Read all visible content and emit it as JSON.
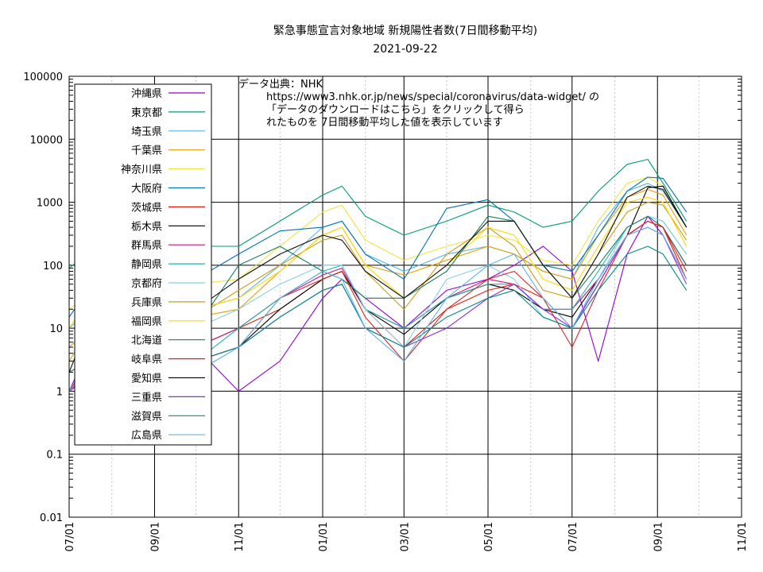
{
  "chart_data": {
    "type": "line",
    "title": "緊急事態宣言対象地域 新規陽性者数(7日間移動平均)",
    "subtitle": "2021-09-22",
    "note_lines": [
      "データ出典：NHK",
      "https://www3.nhk.or.jp/news/special/coronavirus/data-widget/ の",
      "「データのダウンロードはこちら」をクリックして得ら",
      "れたものを 7日間移動平均した値を表示しています"
    ],
    "y_scale": "log",
    "ylim": [
      0.01,
      100000
    ],
    "y_ticks": [
      {
        "value": 100000,
        "label": "100000"
      },
      {
        "value": 10000,
        "label": "10000"
      },
      {
        "value": 1000,
        "label": "1000"
      },
      {
        "value": 100,
        "label": "100"
      },
      {
        "value": 10,
        "label": "10"
      },
      {
        "value": 1,
        "label": "1"
      },
      {
        "value": 0.1,
        "label": "0.1"
      },
      {
        "value": 0.01,
        "label": "0.01"
      }
    ],
    "xlim": [
      "2020-07-01",
      "2021-11-01"
    ],
    "x_ticks": [
      {
        "date": "2020-07-01",
        "label": "07/01"
      },
      {
        "date": "2020-09-01",
        "label": "09/01"
      },
      {
        "date": "2020-11-01",
        "label": "11/01"
      },
      {
        "date": "2021-01-01",
        "label": "01/01"
      },
      {
        "date": "2021-03-01",
        "label": "03/01"
      },
      {
        "date": "2021-05-01",
        "label": "05/01"
      },
      {
        "date": "2021-07-01",
        "label": "07/01"
      },
      {
        "date": "2021-09-01",
        "label": "09/01"
      },
      {
        "date": "2021-11-01",
        "label": "11/01"
      }
    ],
    "grid": true,
    "legend_position": "top-left",
    "dates": [
      "2020-07-01",
      "2020-08-01",
      "2020-09-01",
      "2020-10-01",
      "2020-11-01",
      "2020-12-01",
      "2021-01-01",
      "2021-01-15",
      "2021-02-01",
      "2021-03-01",
      "2021-04-01",
      "2021-05-01",
      "2021-05-20",
      "2021-06-10",
      "2021-07-01",
      "2021-07-20",
      "2021-08-10",
      "2021-08-25",
      "2021-09-05",
      "2021-09-22"
    ],
    "series": [
      {
        "name": "沖縄県",
        "color": "#9400d3",
        "values": [
          1,
          30,
          8,
          5,
          1,
          3,
          30,
          60,
          30,
          10,
          40,
          60,
          100,
          200,
          80,
          3,
          150,
          600,
          300,
          60
        ]
      },
      {
        "name": "東京都",
        "color": "#009e73",
        "values": [
          90,
          300,
          200,
          200,
          200,
          500,
          1300,
          1800,
          600,
          300,
          500,
          900,
          700,
          400,
          500,
          1500,
          4000,
          4800,
          2000,
          500
        ]
      },
      {
        "name": "埼玉県",
        "color": "#56b4e9",
        "values": [
          10,
          40,
          30,
          20,
          30,
          100,
          400,
          500,
          150,
          80,
          150,
          200,
          150,
          80,
          60,
          400,
          1500,
          2000,
          1500,
          400
        ]
      },
      {
        "name": "千葉県",
        "color": "#e69f00",
        "values": [
          5,
          20,
          20,
          15,
          20,
          80,
          300,
          400,
          100,
          70,
          120,
          200,
          150,
          80,
          60,
          300,
          1200,
          1600,
          1300,
          300
        ]
      },
      {
        "name": "神奈川県",
        "color": "#f0e442",
        "values": [
          20,
          60,
          60,
          50,
          60,
          200,
          700,
          900,
          250,
          120,
          200,
          300,
          250,
          120,
          100,
          500,
          2000,
          2500,
          1800,
          400
        ]
      },
      {
        "name": "大阪府",
        "color": "#0072b2",
        "values": [
          15,
          150,
          80,
          60,
          150,
          350,
          400,
          500,
          150,
          60,
          800,
          1100,
          500,
          100,
          80,
          300,
          1500,
          2500,
          2400,
          700
        ]
      },
      {
        "name": "茨城県",
        "color": "#e51e10",
        "values": [
          1,
          5,
          5,
          5,
          10,
          20,
          60,
          80,
          20,
          5,
          20,
          40,
          50,
          30,
          10,
          50,
          300,
          500,
          400,
          60
        ]
      },
      {
        "name": "栃木県",
        "color": "#000000",
        "values": [
          1,
          3,
          2,
          3,
          5,
          20,
          60,
          80,
          20,
          8,
          30,
          50,
          40,
          20,
          15,
          60,
          300,
          1700,
          1800,
          400
        ]
      },
      {
        "name": "群馬県",
        "color": "#c71585",
        "values": [
          1,
          3,
          3,
          5,
          10,
          30,
          70,
          90,
          20,
          10,
          30,
          60,
          50,
          20,
          20,
          60,
          300,
          500,
          400,
          100
        ]
      },
      {
        "name": "静岡県",
        "color": "#20b2aa",
        "values": [
          1,
          5,
          3,
          3,
          10,
          30,
          80,
          100,
          20,
          10,
          30,
          50,
          50,
          20,
          20,
          80,
          400,
          600,
          500,
          150
        ]
      },
      {
        "name": "京都府",
        "color": "#87ceeb",
        "values": [
          1,
          15,
          10,
          10,
          20,
          50,
          100,
          100,
          20,
          5,
          60,
          100,
          60,
          15,
          10,
          60,
          400,
          600,
          500,
          150
        ]
      },
      {
        "name": "兵庫県",
        "color": "#cd9b1d",
        "values": [
          3,
          40,
          20,
          15,
          40,
          100,
          250,
          300,
          80,
          20,
          150,
          400,
          200,
          40,
          30,
          150,
          700,
          1000,
          900,
          250
        ]
      },
      {
        "name": "福岡県",
        "color": "#ffd700",
        "values": [
          10,
          100,
          30,
          20,
          30,
          80,
          300,
          400,
          100,
          30,
          100,
          400,
          300,
          60,
          40,
          200,
          1000,
          1200,
          1000,
          200
        ]
      },
      {
        "name": "北海道",
        "color": "#1b7f5f",
        "values": [
          2,
          5,
          5,
          10,
          100,
          200,
          80,
          60,
          30,
          30,
          80,
          600,
          500,
          100,
          30,
          100,
          400,
          600,
          400,
          100
        ]
      },
      {
        "name": "岐阜県",
        "color": "#d62728",
        "values": [
          1,
          10,
          5,
          3,
          5,
          30,
          60,
          80,
          15,
          3,
          20,
          60,
          80,
          30,
          5,
          40,
          300,
          500,
          400,
          80
        ]
      },
      {
        "name": "愛知県",
        "color": "#111111",
        "values": [
          2,
          100,
          30,
          20,
          60,
          150,
          300,
          250,
          80,
          30,
          100,
          500,
          500,
          100,
          30,
          150,
          1200,
          1800,
          1600,
          400
        ]
      },
      {
        "name": "三重県",
        "color": "#8a2be2",
        "values": [
          1,
          5,
          3,
          3,
          5,
          15,
          40,
          50,
          10,
          5,
          10,
          30,
          50,
          20,
          10,
          50,
          300,
          400,
          300,
          50
        ]
      },
      {
        "name": "滋賀県",
        "color": "#008b8b",
        "values": [
          1,
          5,
          3,
          3,
          5,
          15,
          40,
          50,
          10,
          5,
          15,
          30,
          40,
          15,
          10,
          40,
          150,
          200,
          150,
          40
        ]
      },
      {
        "name": "広島県",
        "color": "#5fb4e8",
        "values": [
          1,
          5,
          2,
          2,
          5,
          30,
          80,
          60,
          10,
          3,
          30,
          100,
          150,
          30,
          10,
          60,
          300,
          400,
          300,
          60
        ]
      }
    ]
  }
}
